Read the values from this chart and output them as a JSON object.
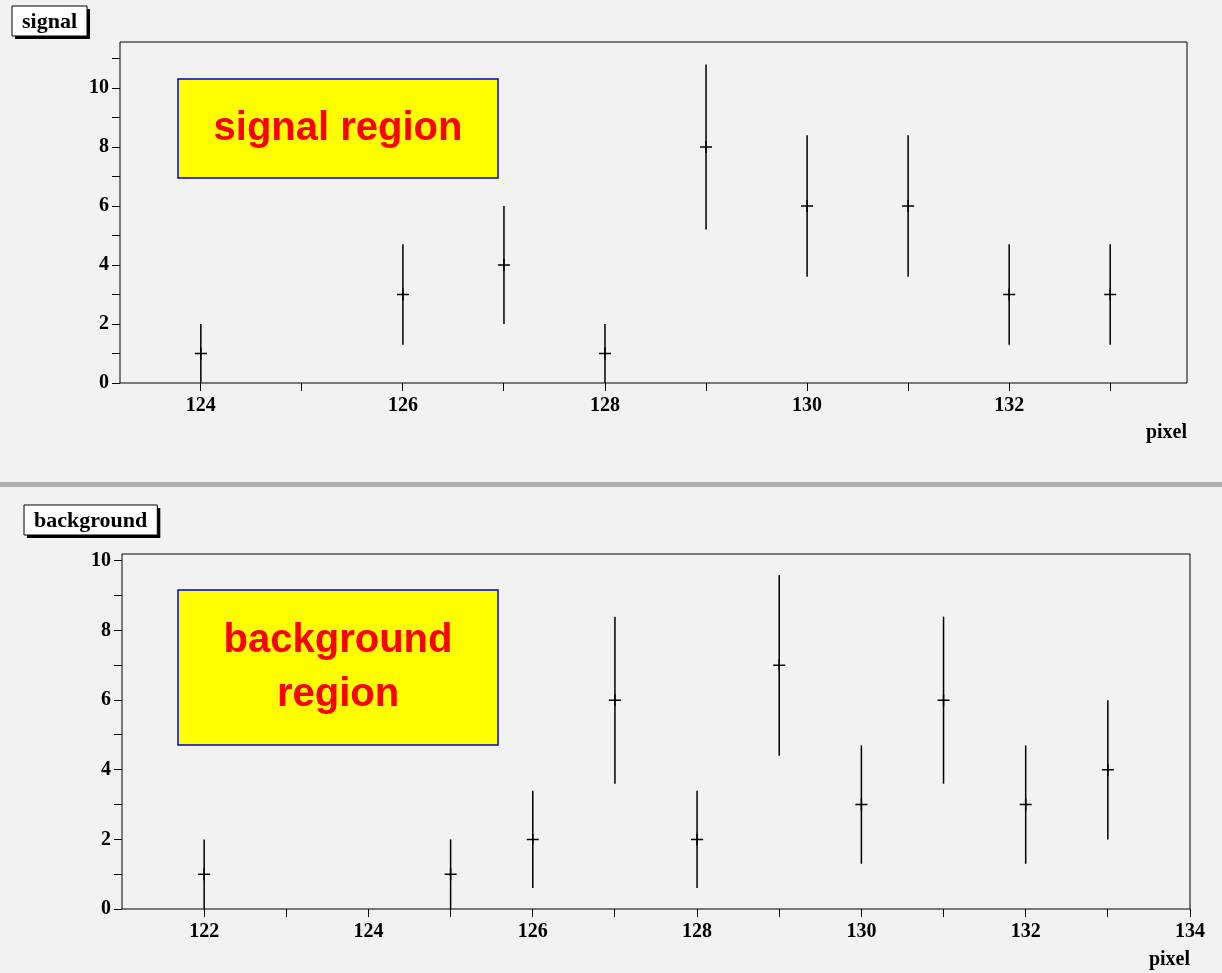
{
  "chart_data": [
    {
      "type": "scatter",
      "title": "signal",
      "xlabel": "pixel",
      "annotations": [
        "signal region"
      ],
      "x": [
        124,
        126,
        127,
        128,
        129,
        130,
        131,
        132,
        133
      ],
      "values": [
        1,
        3,
        4,
        1,
        8,
        6,
        6,
        3,
        3
      ],
      "errors": [
        1,
        1.7,
        2,
        1,
        2.8,
        2.4,
        2.4,
        1.7,
        1.7
      ],
      "color": "#000000",
      "marker": "cross",
      "grid": false,
      "xlim": [
        123.2,
        133.76
      ],
      "xticks": [
        124,
        {
          "value": 125,
          "label": null
        },
        126,
        {
          "value": 127,
          "label": null
        },
        128,
        {
          "value": 129,
          "label": null
        },
        130,
        {
          "value": 131,
          "label": null
        },
        132,
        {
          "value": 133,
          "label": null
        }
      ],
      "ylim": [
        0,
        11.56
      ],
      "yticks": [
        0,
        {
          "value": 1,
          "label": null
        },
        2,
        {
          "value": 3,
          "label": null
        },
        4,
        {
          "value": 5,
          "label": null
        },
        6,
        {
          "value": 7,
          "label": null
        },
        8,
        {
          "value": 9,
          "label": null
        },
        10,
        {
          "value": 11,
          "label": null
        }
      ]
    },
    {
      "type": "scatter",
      "title": "background",
      "xlabel": "pixel",
      "annotations": [
        "background region"
      ],
      "x": [
        122,
        125,
        126,
        127,
        128,
        129,
        130,
        131,
        132,
        133
      ],
      "values": [
        1,
        1,
        2,
        6,
        2,
        7,
        3,
        6,
        3,
        4
      ],
      "errors": [
        1,
        1,
        1.4,
        2.4,
        1.4,
        2.6,
        1.7,
        2.4,
        1.7,
        2
      ],
      "color": "#000000",
      "marker": "cross",
      "grid": false,
      "xlim": [
        121,
        134
      ],
      "xticks": [
        122,
        {
          "value": 123,
          "label": null
        },
        124,
        {
          "value": 125,
          "label": null
        },
        126,
        {
          "value": 127,
          "label": null
        },
        128,
        {
          "value": 129,
          "label": null
        },
        130,
        {
          "value": 131,
          "label": null
        },
        132,
        {
          "value": 133,
          "label": null
        },
        134
      ],
      "ylim": [
        0,
        10.2
      ],
      "yticks": [
        0,
        {
          "value": 1,
          "label": null
        },
        2,
        {
          "value": 3,
          "label": null
        },
        4,
        {
          "value": 5,
          "label": null
        },
        6,
        {
          "value": 7,
          "label": null
        },
        8,
        {
          "value": 9,
          "label": null
        },
        10
      ]
    }
  ]
}
